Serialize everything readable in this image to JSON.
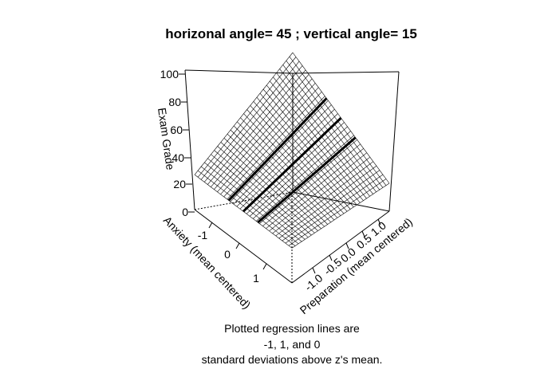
{
  "chart_data": {
    "type": "surface",
    "title": "horizonal angle= 45 ; vertical angle= 15",
    "zlabel": "Exam Grade",
    "xlabel": "Anxiety (mean centered)",
    "ylabel": "Preparation (mean centered)",
    "zticks": [
      "0",
      "20",
      "40",
      "60",
      "80",
      "100"
    ],
    "xticks": [
      "-1",
      "0",
      "1"
    ],
    "yticks": [
      "-1.0",
      "-0.5",
      "0.0",
      "0.5",
      "1.0"
    ],
    "zlim": [
      0,
      100
    ],
    "caption": [
      "Plotted regression lines are",
      "-1,  1,  and 0",
      "standard deviations above z's mean."
    ],
    "surface_corners": {
      "low_preparation_low_anxiety": 25,
      "low_preparation_high_anxiety": 25,
      "high_preparation_low_anxiety": 100,
      "high_preparation_high_anxiety": 20
    }
  }
}
